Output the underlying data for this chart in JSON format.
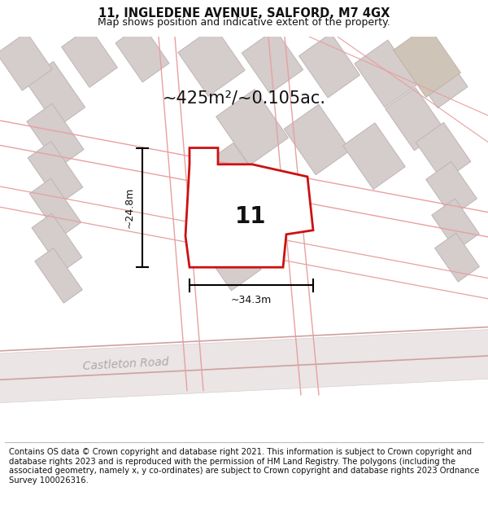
{
  "title": "11, INGLEDENE AVENUE, SALFORD, M7 4GX",
  "subtitle": "Map shows position and indicative extent of the property.",
  "area_text": "~425m²/~0.105ac.",
  "label_number": "11",
  "dim_width": "~34.3m",
  "dim_height": "~24.8m",
  "road_label": "Castleton Road",
  "footer": "Contains OS data © Crown copyright and database right 2021. This information is subject to Crown copyright and database rights 2023 and is reproduced with the permission of HM Land Registry. The polygons (including the associated geometry, namely x, y co-ordinates) are subject to Crown copyright and database rights 2023 Ordnance Survey 100026316.",
  "map_bg": "#f5f0f0",
  "building_gray": "#d5cccc",
  "building_edge": "#bfb5b5",
  "building_dark": "#ccc4c4",
  "road_fill": "#e8e0e0",
  "road_pink": "#e8a0a0",
  "highlight_red": "#cc1111",
  "highlight_fill": "#ffffff",
  "title_fontsize": 10.5,
  "subtitle_fontsize": 9,
  "area_fontsize": 15,
  "label_fontsize": 18,
  "road_label_fontsize": 10,
  "footer_fontsize": 7.2
}
